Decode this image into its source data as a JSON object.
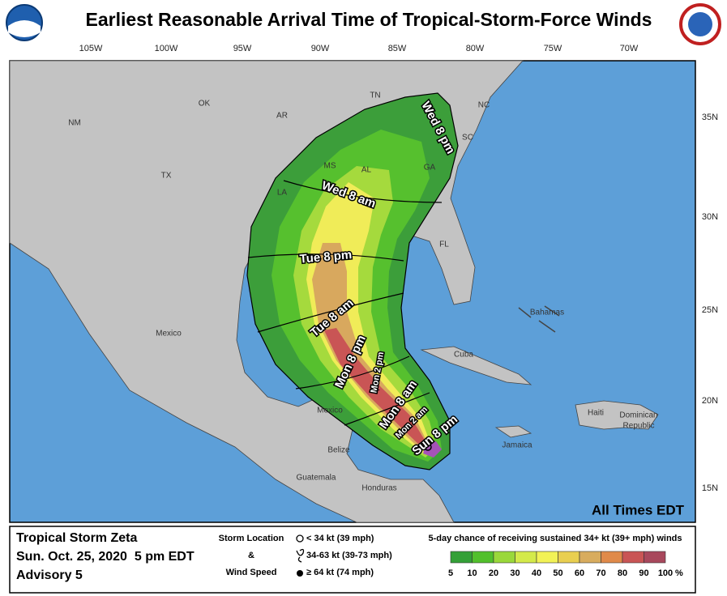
{
  "header": {
    "title": "Earliest Reasonable Arrival Time of Tropical-Storm-Force Winds"
  },
  "map": {
    "longitude_labels": [
      "105W",
      "100W",
      "95W",
      "90W",
      "85W",
      "80W",
      "75W",
      "70W"
    ],
    "latitude_labels": [
      "35N",
      "30N",
      "25N",
      "20N",
      "15N"
    ],
    "state_labels": [
      "NM",
      "OK",
      "AR",
      "TN",
      "NC",
      "SC",
      "MS",
      "AL",
      "GA",
      "TX",
      "LA",
      "FL"
    ],
    "country_labels": [
      "Mexico",
      "Bahamas",
      "Cuba",
      "Haiti",
      "Jamaica",
      "Mexico",
      "Belize",
      "Guatemala",
      "Honduras"
    ],
    "country_label_multiline": [
      "Dominican",
      "Republic"
    ],
    "arrival_labels": [
      "Wed 8 pm",
      "Wed 8 am",
      "Tue 8 pm",
      "Tue 8 am",
      "Mon 8 pm",
      "Mon 2 pm",
      "Mon 8 am",
      "Mon 2 am",
      "Sun 8 pm"
    ],
    "time_zone_note": "All Times EDT"
  },
  "footer": {
    "storm_name": "Tropical Storm Zeta",
    "issued": "Sun. Oct. 25, 2020  5 pm EDT",
    "advisory": "Advisory 5",
    "legend_title": [
      "Storm Location",
      "&",
      "Wind Speed"
    ],
    "legend_items": [
      "< 34 kt (39 mph)",
      "34-63 kt (39-73 mph)",
      "≥ 64 kt (74 mph)"
    ],
    "scale_title": "5-day chance of receiving sustained 34+ kt (39+ mph) winds",
    "scale_ticks": [
      5,
      10,
      20,
      30,
      40,
      50,
      60,
      70,
      80,
      90,
      100
    ],
    "scale_unit": "%",
    "scale_colors": [
      "#34a037",
      "#52c02c",
      "#9ad83a",
      "#d4ea4a",
      "#f2f256",
      "#e9cf50",
      "#d8ac5e",
      "#e08a4a",
      "#c95555",
      "#a8485c",
      "#a552b8"
    ]
  }
}
